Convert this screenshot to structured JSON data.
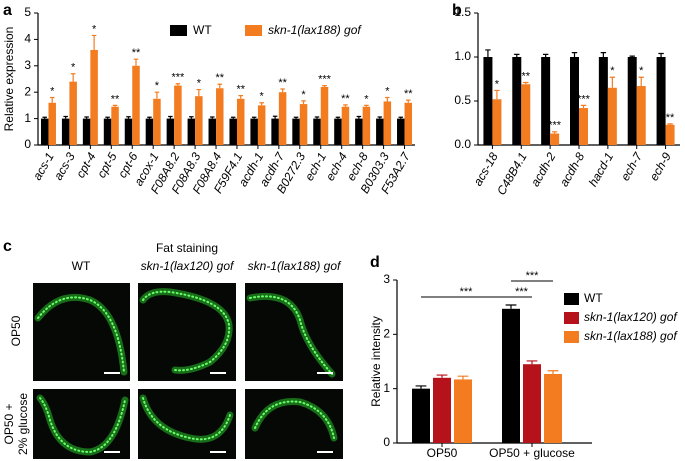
{
  "chart_data": [
    {
      "type": "bar",
      "panel": "a",
      "y_label": "Relative expression",
      "categories": [
        "acs-1",
        "acs-3",
        "cpt-4",
        "cpt-5",
        "cpt-6",
        "acox-1",
        "F08A8.2",
        "F08A8.3",
        "F08A8.4",
        "F59F4.1",
        "acdh-1",
        "acdh-7",
        "B0272.3",
        "ech-1",
        "ech-4",
        "ech-8",
        "B0303.3",
        "F53A2.7"
      ],
      "series": [
        {
          "name": "WT",
          "color": "#000000",
          "values": [
            1,
            1,
            1,
            1,
            1,
            1,
            1,
            1,
            1,
            1,
            1,
            1,
            1,
            1,
            1,
            1,
            1,
            1
          ],
          "errors": [
            0.05,
            0.08,
            0.06,
            0.05,
            0.07,
            0.05,
            0.08,
            0.07,
            0.06,
            0.05,
            0.05,
            0.09,
            0.05,
            0.06,
            0.05,
            0.08,
            0.06,
            0.05
          ]
        },
        {
          "name": "skn-1(lax188) gof",
          "color": "#f47c20",
          "values": [
            1.6,
            2.4,
            3.6,
            1.45,
            3.0,
            1.75,
            2.25,
            1.85,
            2.15,
            1.75,
            1.5,
            2.0,
            1.55,
            2.2,
            1.45,
            1.45,
            1.65,
            1.6
          ],
          "errors": [
            0.2,
            0.3,
            0.55,
            0.05,
            0.25,
            0.25,
            0.07,
            0.25,
            0.15,
            0.12,
            0.1,
            0.12,
            0.12,
            0.05,
            0.07,
            0.05,
            0.15,
            0.1
          ],
          "significance": [
            "*",
            "*",
            "*",
            "**",
            "**",
            "*",
            "***",
            "*",
            "**",
            "**",
            "*",
            "**",
            "*",
            "***",
            "**",
            "*",
            "*",
            "**"
          ]
        }
      ],
      "ylim": [
        0,
        5
      ],
      "yticks": [
        0,
        1,
        2,
        3,
        4,
        5
      ],
      "legend": "top"
    },
    {
      "type": "bar",
      "panel": "b",
      "categories": [
        "acs-18",
        "C48B4.1",
        "acdh-2",
        "acdh-8",
        "hacd-1",
        "ech-7",
        "ech-9"
      ],
      "series": [
        {
          "color": "#000000",
          "values": [
            1,
            1,
            1,
            1,
            1,
            1,
            1
          ],
          "errors": [
            0.08,
            0.03,
            0.03,
            0.05,
            0.05,
            0.01,
            0.04
          ]
        },
        {
          "color": "#f47c20",
          "values": [
            0.52,
            0.69,
            0.13,
            0.42,
            0.65,
            0.67,
            0.23
          ],
          "errors": [
            0.1,
            0.02,
            0.02,
            0.03,
            0.12,
            0.1,
            0.01
          ],
          "significance": [
            "*",
            "**",
            "***",
            "***",
            "*",
            "*",
            "**"
          ]
        }
      ],
      "ylim": [
        0,
        1.5
      ],
      "yticks": [
        {
          "value": 0,
          "label": "0.0"
        },
        {
          "value": 0.5,
          "label": "0.5"
        },
        {
          "value": 1,
          "label": "1.0"
        },
        {
          "value": 1.5,
          "label": "1.5"
        }
      ]
    },
    {
      "type": "bar",
      "panel": "d",
      "y_label": "Relative intensity",
      "categories": [
        "OP50",
        "OP50 + glucose"
      ],
      "series": [
        {
          "name": "WT",
          "color": "#000000",
          "values": [
            1.0,
            2.47
          ],
          "errors": [
            0.05,
            0.07
          ]
        },
        {
          "name": "skn-1(lax120) gof",
          "color": "#b5121b",
          "values": [
            1.2,
            1.45
          ],
          "errors": [
            0.05,
            0.06
          ]
        },
        {
          "name": "skn-1(lax188) gof",
          "color": "#f47c20",
          "values": [
            1.17,
            1.27
          ],
          "errors": [
            0.06,
            0.06
          ]
        }
      ],
      "annotations": [
        "***",
        "***",
        "***"
      ],
      "ylim": [
        0,
        3
      ],
      "yticks": [
        0,
        1,
        2,
        3
      ],
      "legend": "right"
    }
  ],
  "figure_c": {
    "panel": "c",
    "title": "Fat staining",
    "columns": [
      "WT",
      "skn-1(lax120) gof",
      "skn-1(lax188) gof"
    ],
    "rows": [
      [
        "OP50"
      ],
      [
        "OP50 +",
        "2% glucose"
      ]
    ]
  }
}
